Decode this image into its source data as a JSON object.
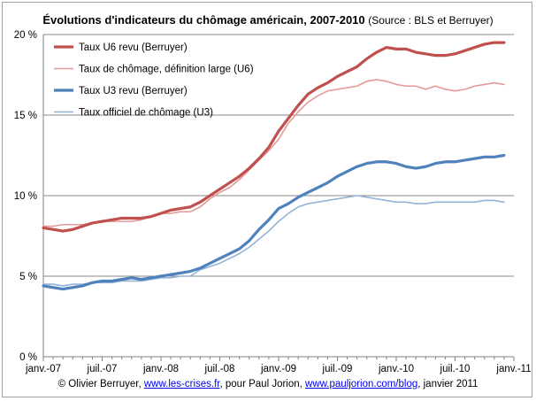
{
  "chart_data": {
    "type": "line",
    "title": "Évolutions d'indicateurs du chômage américain, 2007-2010",
    "subtitle": "(Source : BLS et Berruyer)",
    "xlabel": "",
    "ylabel": "",
    "ylim": [
      0,
      20
    ],
    "y_ticks": [
      "0 %",
      "5 %",
      "10 %",
      "15 %",
      "20 %"
    ],
    "y_tick_values": [
      0,
      5,
      10,
      15,
      20
    ],
    "x_tick_labels": [
      "janv.-07",
      "juil.-07",
      "janv.-08",
      "juil.-08",
      "janv.-09",
      "juil.-09",
      "janv.-10",
      "juil.-10",
      "janv.-11"
    ],
    "x_start": "2007-01",
    "grid": "horizontal",
    "legend_position": "top-left",
    "series": [
      {
        "name": "Taux U6 revu (Berruyer)",
        "color": "#c0504d",
        "style": "thick",
        "values": [
          8.0,
          7.9,
          7.8,
          7.9,
          8.1,
          8.3,
          8.4,
          8.5,
          8.6,
          8.6,
          8.6,
          8.7,
          8.9,
          9.1,
          9.2,
          9.3,
          9.6,
          10.0,
          10.4,
          10.8,
          11.2,
          11.7,
          12.3,
          13.0,
          14.0,
          14.8,
          15.6,
          16.3,
          16.7,
          17.0,
          17.4,
          17.7,
          18.0,
          18.5,
          18.9,
          19.2,
          19.1,
          19.1,
          18.9,
          18.8,
          18.7,
          18.7,
          18.8,
          19.0,
          19.2,
          19.4,
          19.5,
          19.5
        ]
      },
      {
        "name": "Taux de chômage, définition large (U6)",
        "color": "#e49a98",
        "style": "thin",
        "values": [
          8.1,
          8.1,
          8.2,
          8.2,
          8.2,
          8.3,
          8.4,
          8.4,
          8.4,
          8.4,
          8.5,
          8.7,
          8.9,
          8.9,
          9.0,
          9.0,
          9.3,
          9.8,
          10.2,
          10.5,
          11.0,
          11.6,
          12.2,
          12.8,
          13.5,
          14.5,
          15.2,
          15.8,
          16.2,
          16.5,
          16.6,
          16.7,
          16.8,
          17.1,
          17.2,
          17.1,
          16.9,
          16.8,
          16.8,
          16.6,
          16.8,
          16.6,
          16.5,
          16.6,
          16.8,
          16.9,
          17.0,
          16.9
        ]
      },
      {
        "name": "Taux U3 revu (Berruyer)",
        "color": "#4f81bd",
        "style": "thick",
        "values": [
          4.4,
          4.3,
          4.2,
          4.3,
          4.4,
          4.6,
          4.7,
          4.7,
          4.8,
          4.9,
          4.8,
          4.9,
          5.0,
          5.1,
          5.2,
          5.3,
          5.5,
          5.8,
          6.1,
          6.4,
          6.7,
          7.2,
          7.9,
          8.5,
          9.2,
          9.5,
          9.9,
          10.2,
          10.5,
          10.8,
          11.2,
          11.5,
          11.8,
          12.0,
          12.1,
          12.1,
          12.0,
          11.8,
          11.7,
          11.8,
          12.0,
          12.1,
          12.1,
          12.2,
          12.3,
          12.4,
          12.4,
          12.5
        ]
      },
      {
        "name": "Taux officiel de chômage (U3)",
        "color": "#95b3d7",
        "style": "thin",
        "values": [
          4.5,
          4.5,
          4.4,
          4.5,
          4.5,
          4.6,
          4.6,
          4.6,
          4.7,
          4.7,
          4.7,
          4.8,
          4.9,
          4.9,
          5.0,
          5.0,
          5.4,
          5.6,
          5.8,
          6.1,
          6.4,
          6.8,
          7.3,
          7.8,
          8.4,
          8.9,
          9.3,
          9.5,
          9.6,
          9.7,
          9.8,
          9.9,
          10.0,
          9.9,
          9.8,
          9.7,
          9.6,
          9.6,
          9.5,
          9.5,
          9.6,
          9.6,
          9.6,
          9.6,
          9.6,
          9.7,
          9.7,
          9.6
        ]
      }
    ]
  },
  "footer": {
    "credit_prefix": "© Olivier Berruyer, ",
    "link1": "www.les-crises.fr",
    "credit_mid": ", pour Paul Jorion, ",
    "link2": "www.pauljorion.com/blog",
    "credit_suffix": ", janvier 2011"
  }
}
